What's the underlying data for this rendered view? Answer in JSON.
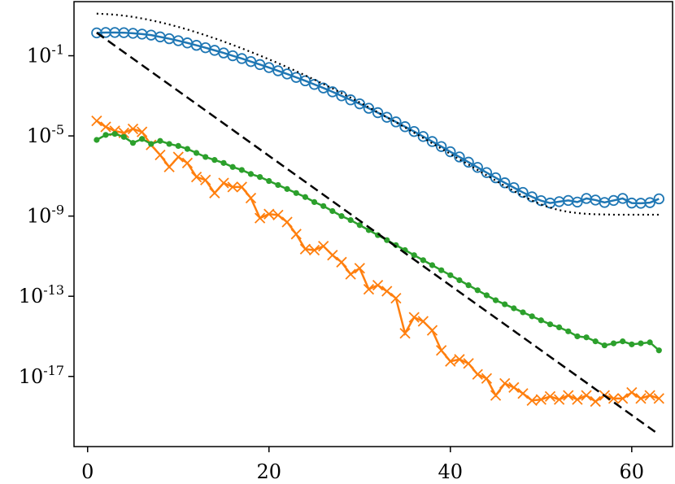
{
  "chart_data": {
    "type": "line",
    "title": "",
    "xlabel": "",
    "ylabel": "",
    "xlim": [
      -1.5,
      64.5
    ],
    "ylim_log10": [
      -20.5,
      1.7
    ],
    "yscale": "log",
    "grid": false,
    "legend": "none",
    "x_ticks": [
      0,
      20,
      40,
      60
    ],
    "x_tick_labels": [
      "0",
      "20",
      "40",
      "60"
    ],
    "y_ticks_log10": [
      -1,
      -5,
      -9,
      -13,
      -17
    ],
    "y_tick_labels": [
      {
        "base": "10",
        "exp": "-1"
      },
      {
        "base": "10",
        "exp": "-5"
      },
      {
        "base": "10",
        "exp": "-9"
      },
      {
        "base": "10",
        "exp": "-13"
      },
      {
        "base": "10",
        "exp": "-17"
      }
    ],
    "series": [
      {
        "color": "#1f77b4",
        "marker": "circle-open",
        "line": "solid",
        "x": [
          1,
          2,
          3,
          4,
          5,
          6,
          7,
          8,
          9,
          10,
          11,
          12,
          13,
          14,
          15,
          16,
          17,
          18,
          19,
          20,
          21,
          22,
          23,
          24,
          25,
          26,
          27,
          28,
          29,
          30,
          31,
          32,
          33,
          34,
          35,
          36,
          37,
          38,
          39,
          40,
          41,
          42,
          43,
          44,
          45,
          46,
          47,
          48,
          49,
          50,
          51,
          52,
          53,
          54,
          55,
          56,
          57,
          58,
          59,
          60,
          61,
          62,
          63
        ],
        "log10_y": [
          0.14,
          0.16,
          0.16,
          0.15,
          0.12,
          0.08,
          0.03,
          -0.06,
          -0.15,
          -0.25,
          -0.36,
          -0.48,
          -0.6,
          -0.73,
          -0.86,
          -1.0,
          -1.14,
          -1.29,
          -1.44,
          -1.59,
          -1.75,
          -1.91,
          -2.08,
          -2.25,
          -2.43,
          -2.61,
          -2.8,
          -3.0,
          -3.2,
          -3.4,
          -3.62,
          -3.84,
          -4.07,
          -4.3,
          -4.54,
          -4.78,
          -5.03,
          -5.28,
          -5.53,
          -5.79,
          -6.05,
          -6.31,
          -6.57,
          -6.83,
          -7.09,
          -7.34,
          -7.58,
          -7.82,
          -8.04,
          -8.23,
          -8.35,
          -8.28,
          -8.22,
          -8.3,
          -8.12,
          -8.2,
          -8.32,
          -8.22,
          -8.12,
          -8.35,
          -8.36,
          -8.33,
          -8.14
        ]
      },
      {
        "color": "#ff7f0e",
        "marker": "x",
        "line": "solid",
        "x": [
          1,
          2,
          3,
          4,
          5,
          6,
          7,
          8,
          9,
          10,
          11,
          12,
          13,
          14,
          15,
          16,
          17,
          18,
          19,
          20,
          21,
          22,
          23,
          24,
          25,
          26,
          27,
          28,
          29,
          30,
          31,
          32,
          33,
          34,
          35,
          36,
          37,
          38,
          39,
          40,
          41,
          42,
          43,
          44,
          45,
          46,
          47,
          48,
          49,
          50,
          51,
          52,
          53,
          54,
          55,
          56,
          57,
          58,
          59,
          60,
          61,
          62,
          63
        ],
        "log10_y": [
          -4.25,
          -4.55,
          -4.75,
          -4.85,
          -4.65,
          -4.8,
          -5.45,
          -5.95,
          -6.55,
          -6.05,
          -6.35,
          -7.05,
          -7.2,
          -7.85,
          -7.35,
          -7.55,
          -7.55,
          -8.1,
          -9.1,
          -8.9,
          -8.95,
          -9.3,
          -9.9,
          -10.65,
          -10.7,
          -10.5,
          -10.95,
          -11.3,
          -11.9,
          -11.6,
          -12.65,
          -12.45,
          -12.75,
          -13.1,
          -14.85,
          -14.05,
          -14.25,
          -14.7,
          -15.7,
          -16.25,
          -16.15,
          -16.35,
          -16.9,
          -17.1,
          -17.95,
          -17.35,
          -17.55,
          -17.85,
          -18.2,
          -18.15,
          -18.0,
          -18.15,
          -17.95,
          -18.15,
          -17.95,
          -18.25,
          -17.95,
          -18.1,
          -18.1,
          -17.8,
          -18.1,
          -17.95,
          -18.1
        ]
      },
      {
        "color": "#2ca02c",
        "marker": "dot",
        "line": "solid",
        "x": [
          1,
          2,
          3,
          4,
          5,
          6,
          7,
          8,
          9,
          10,
          11,
          12,
          13,
          14,
          15,
          16,
          17,
          18,
          19,
          20,
          21,
          22,
          23,
          24,
          25,
          26,
          27,
          28,
          29,
          30,
          31,
          32,
          33,
          34,
          35,
          36,
          37,
          38,
          39,
          40,
          41,
          42,
          43,
          44,
          45,
          46,
          47,
          48,
          49,
          50,
          51,
          52,
          53,
          54,
          55,
          56,
          57,
          58,
          59,
          60,
          61,
          62,
          63
        ],
        "log10_y": [
          -5.2,
          -4.95,
          -4.9,
          -5.05,
          -5.35,
          -5.15,
          -5.4,
          -5.25,
          -5.4,
          -5.5,
          -5.65,
          -5.85,
          -6.05,
          -6.2,
          -6.35,
          -6.55,
          -6.7,
          -6.9,
          -7.05,
          -7.25,
          -7.45,
          -7.65,
          -7.85,
          -8.05,
          -8.3,
          -8.5,
          -8.75,
          -9.0,
          -9.2,
          -9.45,
          -9.7,
          -9.95,
          -10.2,
          -10.45,
          -10.7,
          -10.95,
          -11.2,
          -11.45,
          -11.7,
          -11.95,
          -12.2,
          -12.45,
          -12.7,
          -12.95,
          -13.2,
          -13.4,
          -13.6,
          -13.8,
          -14.0,
          -14.2,
          -14.4,
          -14.55,
          -14.75,
          -15.0,
          -15.05,
          -15.25,
          -15.45,
          -15.35,
          -15.25,
          -15.4,
          -15.35,
          -15.3,
          -15.7
        ]
      },
      {
        "color": "#000000",
        "marker": "none",
        "line": "dotted",
        "x": [
          1,
          2,
          3,
          4,
          5,
          6,
          7,
          8,
          9,
          10,
          11,
          12,
          13,
          14,
          15,
          16,
          17,
          18,
          19,
          20,
          21,
          22,
          23,
          24,
          25,
          26,
          27,
          28,
          29,
          30,
          31,
          32,
          33,
          34,
          35,
          36,
          37,
          38,
          39,
          40,
          41,
          42,
          43,
          44,
          45,
          46,
          47,
          48,
          49,
          50,
          51,
          52,
          53,
          54,
          55,
          56,
          57,
          58,
          59,
          60,
          61,
          62,
          63
        ],
        "log10_y": [
          1.1,
          1.08,
          1.05,
          1.0,
          0.94,
          0.86,
          0.77,
          0.67,
          0.56,
          0.44,
          0.31,
          0.17,
          0.02,
          -0.13,
          -0.29,
          -0.46,
          -0.63,
          -0.81,
          -0.99,
          -1.18,
          -1.37,
          -1.57,
          -1.77,
          -1.98,
          -2.19,
          -2.41,
          -2.63,
          -2.86,
          -3.09,
          -3.33,
          -3.57,
          -3.82,
          -4.07,
          -4.32,
          -4.58,
          -4.84,
          -5.1,
          -5.37,
          -5.63,
          -5.9,
          -6.17,
          -6.43,
          -6.7,
          -6.97,
          -7.23,
          -7.5,
          -7.75,
          -8.0,
          -8.22,
          -8.42,
          -8.58,
          -8.7,
          -8.79,
          -8.85,
          -8.89,
          -8.91,
          -8.92,
          -8.93,
          -8.93,
          -8.93,
          -8.93,
          -8.93,
          -8.93
        ]
      },
      {
        "color": "#000000",
        "marker": "none",
        "line": "dashed",
        "x": [
          1,
          63
        ],
        "log10_y": [
          0.15,
          -19.9
        ]
      }
    ]
  }
}
